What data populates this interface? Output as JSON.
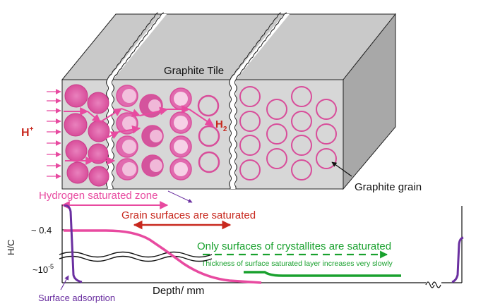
{
  "tile_label": "Graphite Tile",
  "grain_label": "Graphite grain",
  "h_plus": {
    "base": "H",
    "sup": "+"
  },
  "h2": {
    "base": "H",
    "sub": "2"
  },
  "zones": {
    "hydrogen_saturated": "Hydrogen saturated zone",
    "grain_surfaces": "Grain surfaces are saturated",
    "crystallites": "Only surfaces of crystallites are saturated",
    "thickness_note": "Thickness of surface saturated layer increases very slowly",
    "surface_adsorption": "Surface adsorption"
  },
  "axis": {
    "y_label": "H/C",
    "tick_high": "~ 0.4",
    "tick_low": {
      "base": "~10",
      "sup": "-5"
    },
    "x_label": "Depth/ mm"
  },
  "colors": {
    "magenta": "#e84aa0",
    "pink": "#d9589e",
    "red": "#c8281e",
    "green": "#19a12e",
    "purple": "#6a2fa0",
    "box_front": "#d6d6d6",
    "box_top": "#c6c6c6",
    "box_side": "#a9a9a9"
  }
}
